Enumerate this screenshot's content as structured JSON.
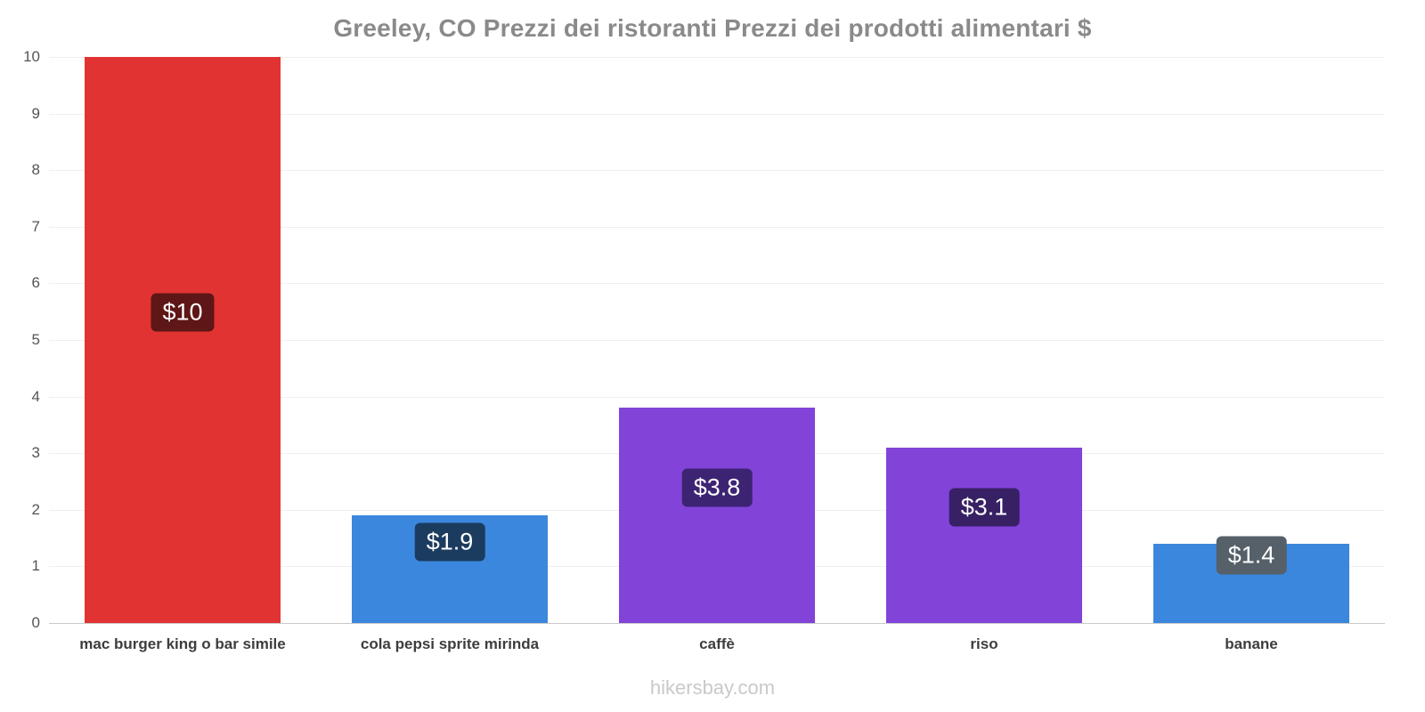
{
  "title": "Greeley, CO Prezzi dei ristoranti Prezzi dei prodotti alimentari $",
  "footer": "hikersbay.com",
  "chart_data": {
    "type": "bar",
    "title": "Greeley, CO Prezzi dei ristoranti Prezzi dei prodotti alimentari $",
    "categories": [
      "mac burger king o bar simile",
      "cola pepsi sprite mirinda",
      "caffè",
      "riso",
      "banane"
    ],
    "values": [
      10,
      1.9,
      3.8,
      3.1,
      1.4
    ],
    "value_labels": [
      "$10",
      "$1.9",
      "$3.8",
      "$3.1",
      "$1.4"
    ],
    "bar_colors": [
      "#e23333",
      "#3b87de",
      "#8143d8",
      "#8143d8",
      "#3b87de"
    ],
    "label_colors": [
      "#5e1616",
      "#1b3c5f",
      "#3c2473",
      "#372064",
      "#566069"
    ],
    "currency": "$",
    "xlabel": "",
    "ylabel": "",
    "ylim": [
      0,
      10
    ],
    "yticks": [
      0,
      1,
      2,
      3,
      4,
      5,
      6,
      7,
      8,
      9,
      10
    ],
    "grid": "horizontal",
    "legend": "none"
  }
}
